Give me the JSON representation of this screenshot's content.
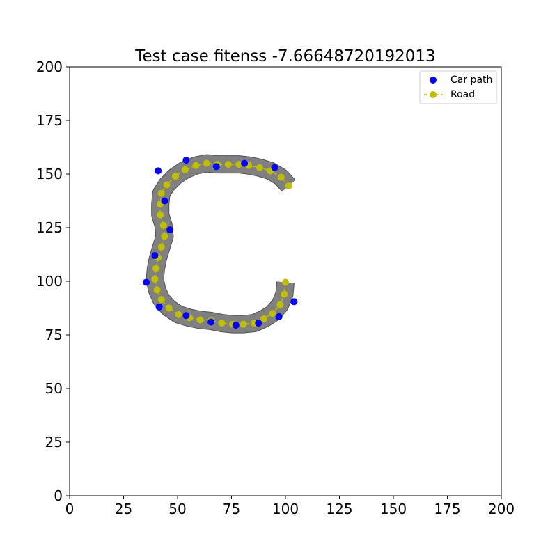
{
  "chart_data": {
    "type": "scatter",
    "title": "Test case fitenss -7.66648720192013",
    "xlabel": "",
    "ylabel": "",
    "xlim": [
      0,
      200
    ],
    "ylim": [
      0,
      200
    ],
    "xticks": [
      0,
      25,
      50,
      75,
      100,
      125,
      150,
      175,
      200
    ],
    "yticks": [
      0,
      25,
      50,
      75,
      100,
      125,
      150,
      175,
      200
    ],
    "grid": false,
    "legend_position": "top-right",
    "colors": {
      "car_path": "#0000ff",
      "road": "#bfbf00",
      "road_surface": "#808080"
    },
    "series": [
      {
        "name": "Car path",
        "marker": "circle",
        "points": [
          [
            41,
            151.5
          ],
          [
            54,
            156.5
          ],
          [
            68,
            153.5
          ],
          [
            81,
            155
          ],
          [
            95,
            153
          ],
          [
            44,
            137.5
          ],
          [
            46.5,
            124
          ],
          [
            39.5,
            112
          ],
          [
            35.5,
            99.5
          ],
          [
            41.5,
            88
          ],
          [
            54,
            84
          ],
          [
            65.5,
            81
          ],
          [
            77,
            79.5
          ],
          [
            87.5,
            80.5
          ],
          [
            97,
            83.5
          ],
          [
            104,
            90.5
          ]
        ]
      },
      {
        "name": "Road",
        "marker": "circle",
        "line_style": "dashed",
        "points": [
          [
            101.5,
            144.5
          ],
          [
            98,
            148.5
          ],
          [
            93,
            151.5
          ],
          [
            88,
            153
          ],
          [
            83,
            154
          ],
          [
            78.5,
            154.5
          ],
          [
            73.5,
            154.5
          ],
          [
            68.5,
            154.5
          ],
          [
            63.5,
            155
          ],
          [
            58.5,
            154
          ],
          [
            53.5,
            152
          ],
          [
            49,
            149
          ],
          [
            45,
            145
          ],
          [
            42.5,
            141
          ],
          [
            42,
            136
          ],
          [
            42,
            131
          ],
          [
            43.5,
            126
          ],
          [
            44,
            121
          ],
          [
            42.5,
            116
          ],
          [
            41,
            111
          ],
          [
            40,
            106
          ],
          [
            39.5,
            101
          ],
          [
            40.5,
            96
          ],
          [
            42.5,
            91.5
          ],
          [
            46,
            87.5
          ],
          [
            50.5,
            84.5
          ],
          [
            55.5,
            83
          ],
          [
            60.5,
            82
          ],
          [
            65.5,
            81.5
          ],
          [
            70.5,
            80.5
          ],
          [
            75.5,
            80
          ],
          [
            80.5,
            80
          ],
          [
            85.5,
            80.5
          ],
          [
            90,
            82.5
          ],
          [
            94,
            85
          ],
          [
            97.5,
            89
          ],
          [
            99.5,
            94
          ],
          [
            100,
            99.5
          ]
        ]
      }
    ]
  }
}
